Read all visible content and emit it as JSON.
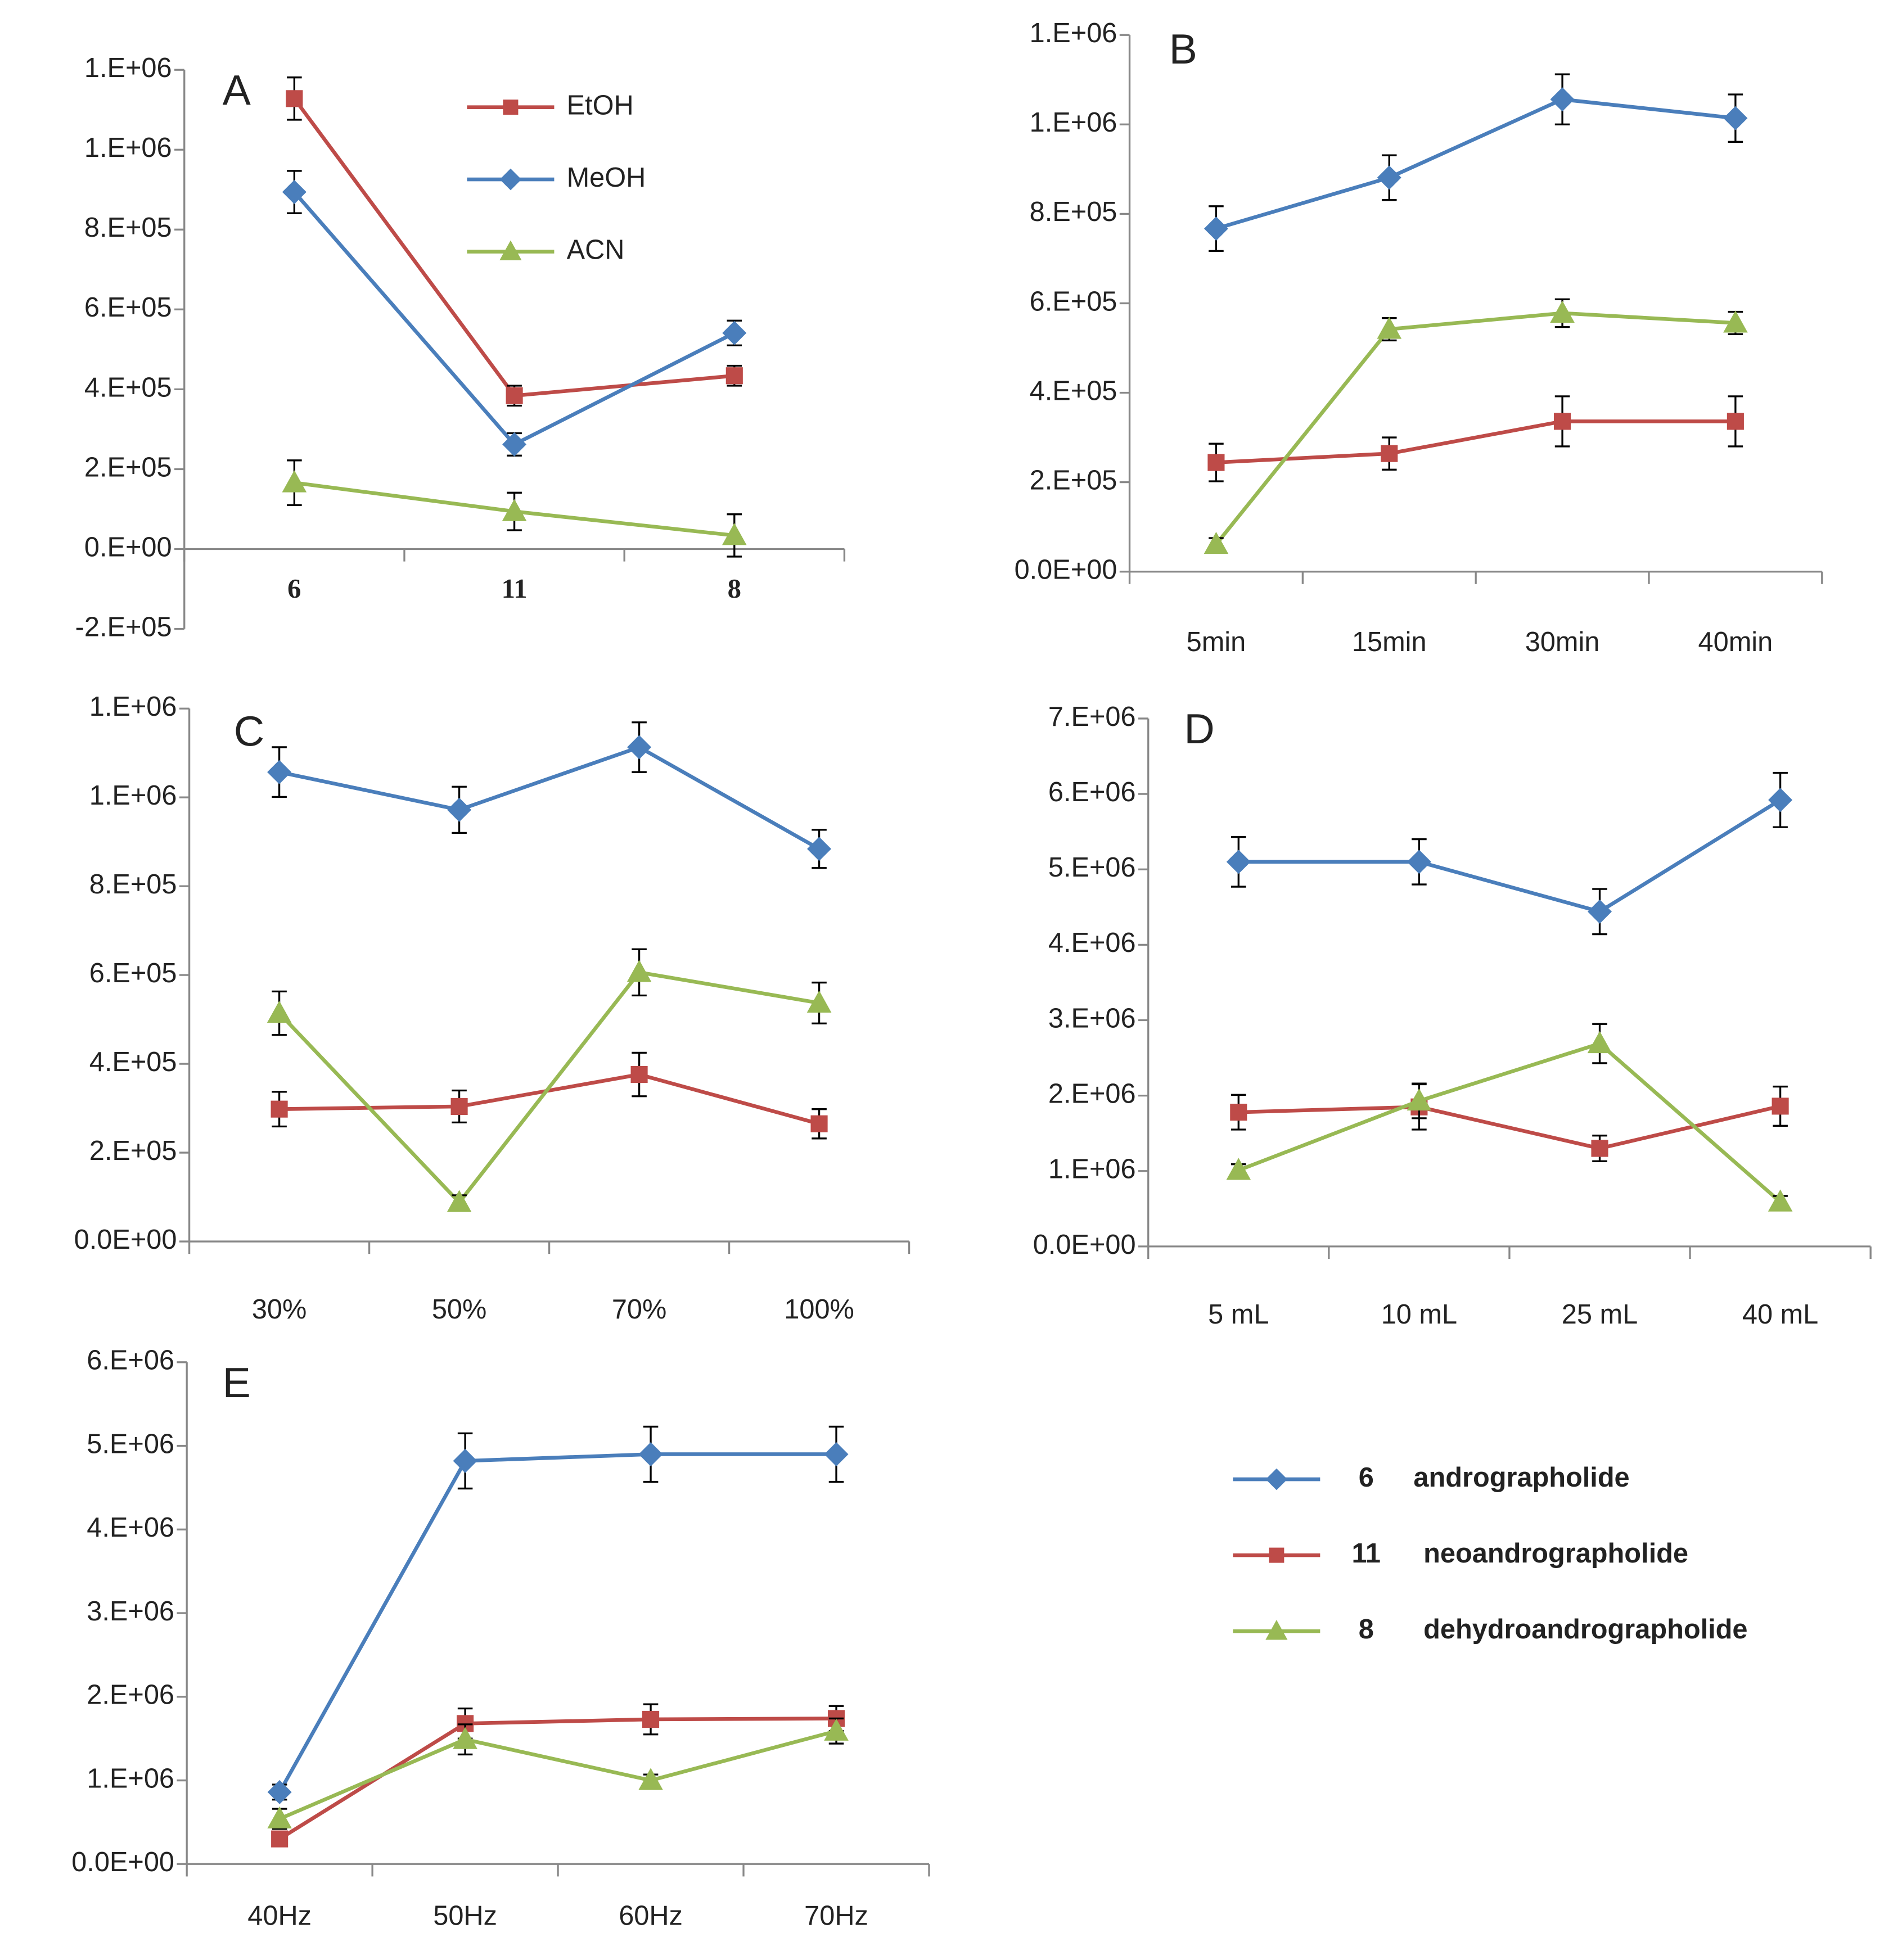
{
  "chart_data": [
    {
      "type": "line",
      "title": "A",
      "categories": [
        "6",
        "11",
        "8"
      ],
      "ylim": [
        -200000,
        1200000
      ],
      "yticks": [
        {
          "value": -200000,
          "label": "-2.E+05"
        },
        {
          "value": 0,
          "label": "0.E+00"
        },
        {
          "value": 200000,
          "label": "2.E+05"
        },
        {
          "value": 400000,
          "label": "4.E+05"
        },
        {
          "value": 600000,
          "label": "6.E+05"
        },
        {
          "value": 800000,
          "label": "8.E+05"
        },
        {
          "value": 1000000,
          "label": "1.E+06"
        },
        {
          "value": 1200000,
          "label": "1.E+06"
        }
      ],
      "series": [
        {
          "name": "EtOH",
          "color": "#be4b48",
          "marker": "square",
          "values": [
            1128000,
            384000,
            434000
          ],
          "errors": [
            53000,
            25000,
            25000
          ]
        },
        {
          "name": "MeOH",
          "color": "#4a7ebb",
          "marker": "diamond",
          "values": [
            894000,
            262000,
            541000
          ],
          "errors": [
            53000,
            28000,
            31000
          ]
        },
        {
          "name": "ACN",
          "color": "#98b954",
          "marker": "triangle",
          "values": [
            166000,
            94000,
            34000
          ],
          "errors": [
            56000,
            47000,
            53000
          ]
        }
      ]
    },
    {
      "type": "line",
      "title": "B",
      "categories": [
        "5min",
        "15min",
        "30min",
        "40min"
      ],
      "ylim": [
        0,
        1200000
      ],
      "yticks": [
        {
          "value": 0,
          "label": "0.0E+00"
        },
        {
          "value": 200000,
          "label": "2.E+05"
        },
        {
          "value": 400000,
          "label": "4.E+05"
        },
        {
          "value": 600000,
          "label": "6.E+05"
        },
        {
          "value": 800000,
          "label": "8.E+05"
        },
        {
          "value": 1000000,
          "label": "1.E+06"
        },
        {
          "value": 1200000,
          "label": "1.E+06"
        }
      ],
      "series": [
        {
          "color": "#4a7ebb",
          "marker": "diamond",
          "values": [
            767000,
            881000,
            1056000,
            1014000
          ],
          "errors": [
            50000,
            50000,
            56000,
            53000
          ]
        },
        {
          "color": "#be4b48",
          "marker": "square",
          "values": [
            244000,
            264000,
            336000,
            336000
          ],
          "errors": [
            42000,
            36000,
            56000,
            56000
          ]
        },
        {
          "color": "#98b954",
          "marker": "triangle",
          "values": [
            61000,
            542000,
            578000,
            556000
          ],
          "errors": [
            14000,
            25000,
            31000,
            25000
          ]
        }
      ]
    },
    {
      "type": "line",
      "title": "C",
      "categories": [
        "30%",
        "50%",
        "70%",
        "100%"
      ],
      "ylim": [
        0,
        1200000
      ],
      "yticks": [
        {
          "value": 0,
          "label": "0.0E+00"
        },
        {
          "value": 200000,
          "label": "2.E+05"
        },
        {
          "value": 400000,
          "label": "4.E+05"
        },
        {
          "value": 600000,
          "label": "6.E+05"
        },
        {
          "value": 800000,
          "label": "8.E+05"
        },
        {
          "value": 1000000,
          "label": "1.E+06"
        },
        {
          "value": 1200000,
          "label": "1.E+06"
        }
      ],
      "series": [
        {
          "color": "#4a7ebb",
          "marker": "diamond",
          "values": [
            1057000,
            972000,
            1113000,
            884000
          ],
          "errors": [
            56000,
            52000,
            56000,
            43000
          ]
        },
        {
          "color": "#be4b48",
          "marker": "square",
          "values": [
            298000,
            304000,
            376000,
            265000
          ],
          "errors": [
            39000,
            36000,
            49000,
            33000
          ]
        },
        {
          "color": "#98b954",
          "marker": "triangle",
          "values": [
            514000,
            88000,
            606000,
            537000
          ],
          "errors": [
            49000,
            16000,
            52000,
            46000
          ]
        }
      ]
    },
    {
      "type": "line",
      "title": "D",
      "categories": [
        "5 mL",
        "10 mL",
        "25 mL",
        "40 mL"
      ],
      "ylim": [
        0,
        7000000
      ],
      "yticks": [
        {
          "value": 0,
          "label": "0.0E+00"
        },
        {
          "value": 1000000,
          "label": "1.E+06"
        },
        {
          "value": 2000000,
          "label": "2.E+06"
        },
        {
          "value": 3000000,
          "label": "3.E+06"
        },
        {
          "value": 4000000,
          "label": "4.E+06"
        },
        {
          "value": 5000000,
          "label": "5.E+06"
        },
        {
          "value": 6000000,
          "label": "6.E+06"
        },
        {
          "value": 7000000,
          "label": "7.E+06"
        }
      ],
      "series": [
        {
          "color": "#4a7ebb",
          "marker": "diamond",
          "values": [
            5100000,
            5100000,
            4440000,
            5920000
          ],
          "errors": [
            330000,
            300000,
            300000,
            360000
          ]
        },
        {
          "color": "#be4b48",
          "marker": "square",
          "values": [
            1780000,
            1850000,
            1300000,
            1860000
          ],
          "errors": [
            230000,
            300000,
            170000,
            260000
          ]
        },
        {
          "color": "#98b954",
          "marker": "triangle",
          "values": [
            1010000,
            1930000,
            2690000,
            590000
          ],
          "errors": [
            80000,
            230000,
            260000,
            80000
          ]
        }
      ]
    },
    {
      "type": "line",
      "title": "E",
      "categories": [
        "40Hz",
        "50Hz",
        "60Hz",
        "70Hz"
      ],
      "ylim": [
        0,
        6000000
      ],
      "yticks": [
        {
          "value": 0,
          "label": "0.0E+00"
        },
        {
          "value": 1000000,
          "label": "1.E+06"
        },
        {
          "value": 2000000,
          "label": "2.E+06"
        },
        {
          "value": 3000000,
          "label": "3.E+06"
        },
        {
          "value": 4000000,
          "label": "4.E+06"
        },
        {
          "value": 5000000,
          "label": "5.E+06"
        },
        {
          "value": 6000000,
          "label": "6.E+06"
        }
      ],
      "series": [
        {
          "color": "#4a7ebb",
          "marker": "diamond",
          "values": [
            860000,
            4820000,
            4900000,
            4900000
          ],
          "errors": [
            90000,
            330000,
            330000,
            330000
          ]
        },
        {
          "color": "#be4b48",
          "marker": "square",
          "values": [
            300000,
            1680000,
            1730000,
            1740000
          ],
          "errors": [
            70000,
            180000,
            180000,
            150000
          ]
        },
        {
          "color": "#98b954",
          "marker": "triangle",
          "values": [
            540000,
            1490000,
            1000000,
            1590000
          ],
          "errors": [
            120000,
            180000,
            70000,
            150000
          ]
        }
      ]
    }
  ],
  "legend": {
    "entries": [
      {
        "compound": "6",
        "name": "andrographolide",
        "color": "#4a7ebb",
        "marker": "diamond"
      },
      {
        "compound": "11",
        "name": "neoandrographolide",
        "color": "#be4b48",
        "marker": "square"
      },
      {
        "compound": "8",
        "name": "dehydroandrographolide",
        "color": "#98b954",
        "marker": "triangle"
      }
    ]
  }
}
